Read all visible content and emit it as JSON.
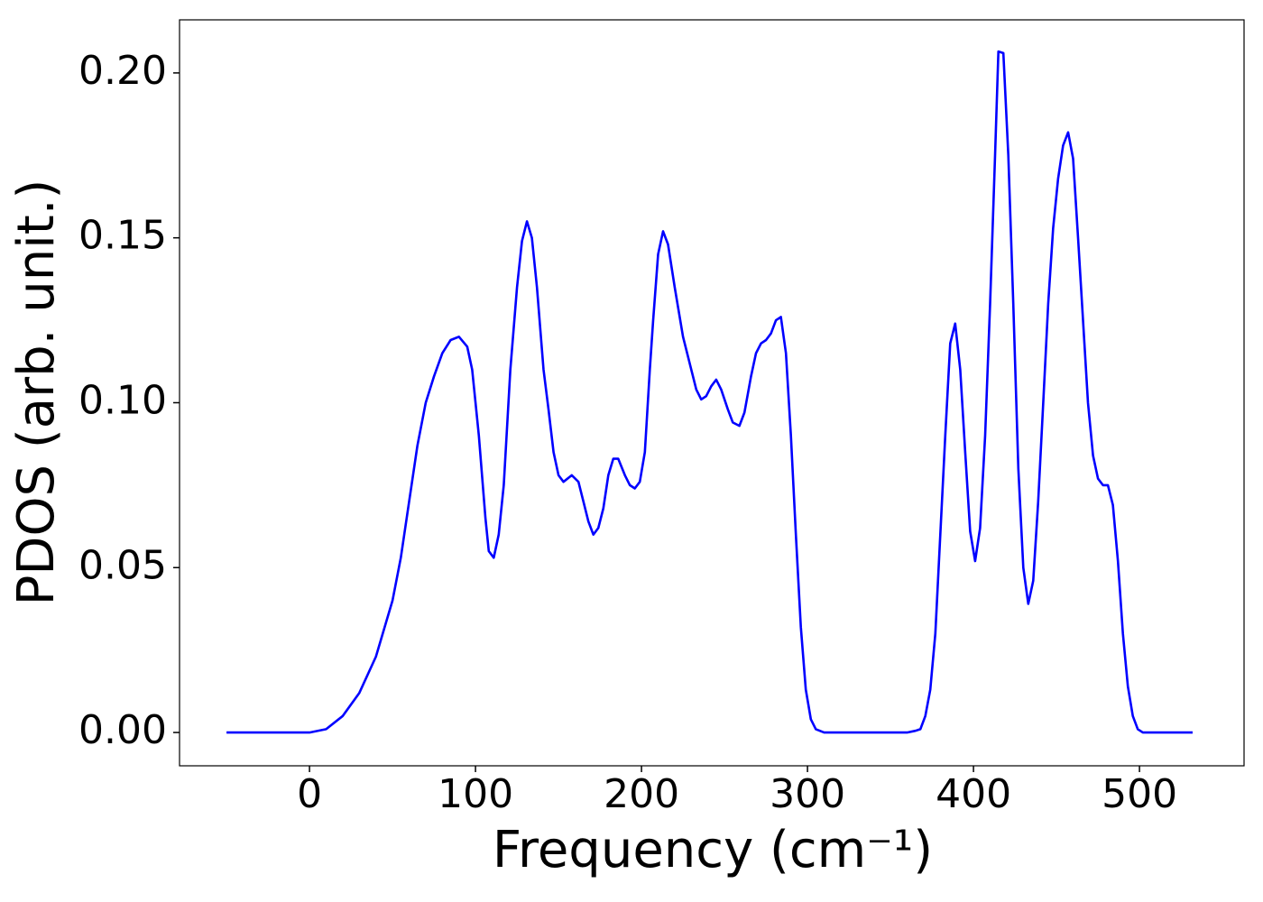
{
  "chart_data": {
    "type": "line",
    "x_label": "Frequency (cm⁻¹)",
    "y_label": "PDOS (arb. unit.)",
    "color": "#0000ff",
    "x": [
      -50,
      0,
      10,
      20,
      30,
      40,
      50,
      55,
      60,
      65,
      70,
      75,
      80,
      85,
      90,
      95,
      98,
      102,
      106,
      108,
      111,
      114,
      117,
      121,
      125,
      128,
      131,
      134,
      137,
      141,
      144,
      147,
      150,
      153,
      158,
      162,
      165,
      168,
      171,
      174,
      177,
      180,
      183,
      186,
      190,
      193,
      196,
      199,
      202,
      205,
      207,
      210,
      213,
      216,
      220,
      225,
      230,
      233,
      236,
      239,
      242,
      245,
      248,
      252,
      255,
      259,
      262,
      266,
      269,
      272,
      275,
      278,
      281,
      284,
      287,
      290,
      293,
      296,
      299,
      302,
      305,
      310,
      360,
      365,
      368,
      371,
      374,
      377,
      380,
      383,
      386,
      389,
      392,
      395,
      398,
      401,
      404,
      407,
      410,
      413,
      415,
      418,
      421,
      424,
      427,
      430,
      433,
      436,
      439,
      442,
      445,
      448,
      451,
      454,
      457,
      460,
      463,
      466,
      469,
      472,
      475,
      478,
      481,
      484,
      487,
      490,
      493,
      496,
      499,
      502,
      532
    ],
    "values": [
      0,
      0,
      0.001,
      0.005,
      0.012,
      0.023,
      0.04,
      0.053,
      0.07,
      0.087,
      0.1,
      0.108,
      0.115,
      0.119,
      0.12,
      0.117,
      0.11,
      0.09,
      0.065,
      0.055,
      0.053,
      0.06,
      0.075,
      0.11,
      0.135,
      0.149,
      0.155,
      0.15,
      0.135,
      0.11,
      0.098,
      0.085,
      0.078,
      0.076,
      0.078,
      0.076,
      0.07,
      0.064,
      0.06,
      0.062,
      0.068,
      0.078,
      0.083,
      0.083,
      0.078,
      0.075,
      0.074,
      0.076,
      0.085,
      0.11,
      0.125,
      0.145,
      0.152,
      0.148,
      0.135,
      0.12,
      0.11,
      0.104,
      0.101,
      0.102,
      0.105,
      0.107,
      0.104,
      0.098,
      0.094,
      0.093,
      0.097,
      0.108,
      0.115,
      0.118,
      0.119,
      0.121,
      0.125,
      0.126,
      0.115,
      0.09,
      0.06,
      0.032,
      0.013,
      0.004,
      0.001,
      0,
      0,
      0.0005,
      0.001,
      0.005,
      0.013,
      0.03,
      0.06,
      0.09,
      0.118,
      0.124,
      0.11,
      0.085,
      0.061,
      0.052,
      0.062,
      0.09,
      0.13,
      0.175,
      0.2065,
      0.206,
      0.175,
      0.13,
      0.08,
      0.05,
      0.039,
      0.046,
      0.07,
      0.1,
      0.13,
      0.153,
      0.168,
      0.178,
      0.182,
      0.174,
      0.15,
      0.125,
      0.1,
      0.084,
      0.077,
      0.075,
      0.075,
      0.069,
      0.052,
      0.03,
      0.014,
      0.005,
      0.001,
      0,
      0
    ],
    "xlim": [
      -78.3,
      563
    ],
    "ylim": [
      -0.0101,
      0.2161
    ],
    "xticks": [
      0,
      100,
      200,
      300,
      400,
      500
    ],
    "yticks": [
      {
        "value": 0,
        "label": "0.00"
      },
      {
        "value": 0.05,
        "label": "0.05"
      },
      {
        "value": 0.1,
        "label": "0.10"
      },
      {
        "value": 0.15,
        "label": "0.15"
      },
      {
        "value": 0.2,
        "label": "0.20"
      }
    ]
  }
}
